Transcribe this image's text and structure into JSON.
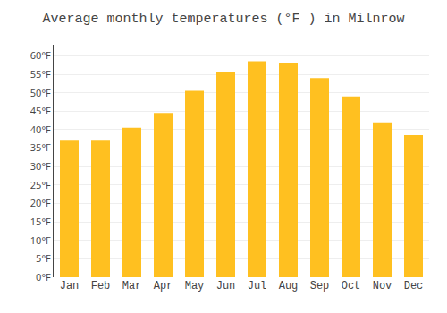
{
  "chart_data": {
    "type": "bar",
    "title": "Average monthly temperatures (°F ) in Milnrow",
    "categories": [
      "Jan",
      "Feb",
      "Mar",
      "Apr",
      "May",
      "Jun",
      "Jul",
      "Aug",
      "Sep",
      "Oct",
      "Nov",
      "Dec"
    ],
    "values": [
      37,
      37,
      40.5,
      44.5,
      50.5,
      55.5,
      58.5,
      58,
      54,
      49,
      42,
      38.5
    ],
    "color": "#FFC020",
    "ylim": [
      0,
      63
    ],
    "yticks": [
      {
        "value": 0,
        "label": "0°F"
      },
      {
        "value": 5,
        "label": "5°F"
      },
      {
        "value": 10,
        "label": "10°F"
      },
      {
        "value": 15,
        "label": "15°F"
      },
      {
        "value": 20,
        "label": "20°F"
      },
      {
        "value": 25,
        "label": "25°F"
      },
      {
        "value": 30,
        "label": "30°F"
      },
      {
        "value": 35,
        "label": "35°F"
      },
      {
        "value": 40,
        "label": "40°F"
      },
      {
        "value": 45,
        "label": "45°F"
      },
      {
        "value": 50,
        "label": "50°F"
      },
      {
        "value": 55,
        "label": "55°F"
      },
      {
        "value": 60,
        "label": "60°F"
      }
    ],
    "grid": true
  }
}
